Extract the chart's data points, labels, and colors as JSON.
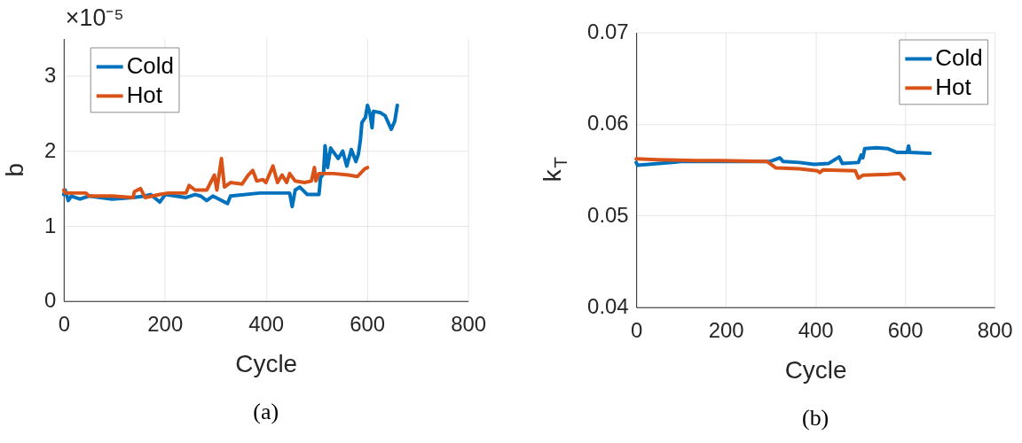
{
  "chart_data": [
    {
      "type": "line",
      "xlabel": "Cycle",
      "ylabel": "b",
      "xlim": [
        0,
        800
      ],
      "xticks": [
        0,
        200,
        400,
        600,
        800
      ],
      "ylim": [
        0,
        3.5
      ],
      "yticks": [
        0,
        1,
        2,
        3
      ],
      "grid": true,
      "legend": "top left",
      "line_style": "solid",
      "annotations": [
        "×10⁻⁵",
        "(a)"
      ],
      "series": [
        {
          "name": "Cold",
          "color": "#0072bd",
          "x": [
            0,
            3,
            9,
            15,
            32,
            50,
            96,
            137,
            160,
            172,
            190,
            201,
            242,
            260,
            271,
            283,
            295,
            324,
            330,
            388,
            447,
            452,
            458,
            467,
            482,
            505,
            508,
            514,
            517,
            522,
            528,
            543,
            552,
            560,
            569,
            578,
            583,
            587,
            590,
            597,
            601,
            606,
            610,
            613,
            627,
            636,
            648,
            655,
            660
          ],
          "values": [
            1.42,
            1.48,
            1.34,
            1.4,
            1.36,
            1.4,
            1.36,
            1.38,
            1.4,
            1.42,
            1.32,
            1.42,
            1.38,
            1.42,
            1.4,
            1.34,
            1.4,
            1.3,
            1.4,
            1.44,
            1.44,
            1.26,
            1.48,
            1.52,
            1.42,
            1.42,
            1.64,
            1.7,
            2.07,
            1.78,
            2.04,
            1.9,
            2.0,
            1.8,
            2.02,
            1.86,
            1.96,
            2.15,
            2.38,
            2.45,
            2.61,
            2.5,
            2.31,
            2.53,
            2.51,
            2.47,
            2.29,
            2.4,
            2.61
          ]
        },
        {
          "name": "Hot",
          "color": "#d95319",
          "x": [
            0,
            3,
            44,
            50,
            96,
            137,
            140,
            152,
            161,
            190,
            207,
            242,
            248,
            260,
            283,
            298,
            303,
            312,
            318,
            330,
            353,
            365,
            374,
            382,
            394,
            400,
            414,
            423,
            432,
            441,
            447,
            458,
            476,
            490,
            496,
            499,
            505,
            534,
            563,
            581,
            595,
            601
          ],
          "values": [
            1.48,
            1.44,
            1.44,
            1.4,
            1.4,
            1.38,
            1.46,
            1.5,
            1.38,
            1.42,
            1.44,
            1.44,
            1.54,
            1.48,
            1.48,
            1.68,
            1.48,
            1.9,
            1.52,
            1.58,
            1.56,
            1.68,
            1.74,
            1.6,
            1.62,
            1.58,
            1.8,
            1.58,
            1.68,
            1.58,
            1.7,
            1.6,
            1.58,
            1.6,
            1.78,
            1.6,
            1.7,
            1.7,
            1.68,
            1.66,
            1.76,
            1.78
          ]
        }
      ]
    },
    {
      "type": "line",
      "xlabel": "Cycle",
      "ylabel": "k$_{T}$",
      "xlim": [
        0,
        800
      ],
      "xticks": [
        0,
        200,
        400,
        600,
        800
      ],
      "ylim": [
        0.04,
        0.07
      ],
      "yticks": [
        0.04,
        0.05,
        0.06,
        0.07
      ],
      "grid": true,
      "legend": "top right",
      "line_style": "solid",
      "annotations": [
        "(b)"
      ],
      "series": [
        {
          "name": "Cold",
          "color": "#0072bd",
          "x": [
            0,
            3,
            101,
            298,
            321,
            328,
            364,
            397,
            430,
            453,
            460,
            496,
            502,
            506,
            510,
            536,
            562,
            582,
            605,
            608,
            611,
            656
          ],
          "values": [
            0.0558,
            0.0555,
            0.0559,
            0.0559,
            0.0563,
            0.0559,
            0.0558,
            0.0556,
            0.0557,
            0.0564,
            0.0557,
            0.0558,
            0.0566,
            0.0563,
            0.0573,
            0.0574,
            0.0573,
            0.0569,
            0.0569,
            0.0576,
            0.0569,
            0.0568
          ]
        },
        {
          "name": "Hot",
          "color": "#d95319",
          "x": [
            0,
            48,
            134,
            186,
            292,
            298,
            312,
            364,
            404,
            410,
            417,
            489,
            496,
            506,
            562,
            588,
            598
          ],
          "values": [
            0.0562,
            0.0561,
            0.056,
            0.056,
            0.0559,
            0.0557,
            0.0552,
            0.0551,
            0.0549,
            0.0547,
            0.055,
            0.0549,
            0.0541,
            0.0544,
            0.0545,
            0.0546,
            0.054
          ]
        }
      ]
    }
  ]
}
